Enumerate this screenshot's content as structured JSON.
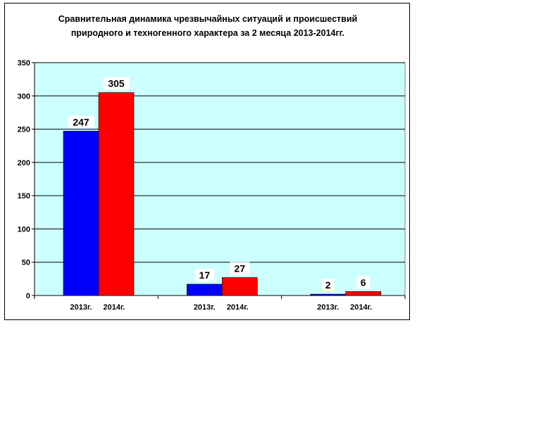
{
  "chart_data": {
    "type": "bar",
    "title_lines": [
      "Сравнительная динамика чрезвычайных ситуаций и происшествий",
      "природного и техногенного характера за 2 месяца 2013-2014гг."
    ],
    "groups": [
      {
        "labels": [
          "2013г.",
          "2014г."
        ],
        "values": [
          247,
          305
        ]
      },
      {
        "labels": [
          "2013г.",
          "2014г."
        ],
        "values": [
          17,
          27
        ]
      },
      {
        "labels": [
          "2013г.",
          "2014г."
        ],
        "values": [
          2,
          6
        ]
      }
    ],
    "series_colors": [
      "#0000ff",
      "#ff0000"
    ],
    "ylim": [
      0,
      350
    ],
    "y_ticks": [
      "0",
      "50",
      "100",
      "150",
      "200",
      "250",
      "300",
      "350"
    ],
    "plot_background": "#ccffff",
    "grid": true,
    "legend": "none"
  }
}
